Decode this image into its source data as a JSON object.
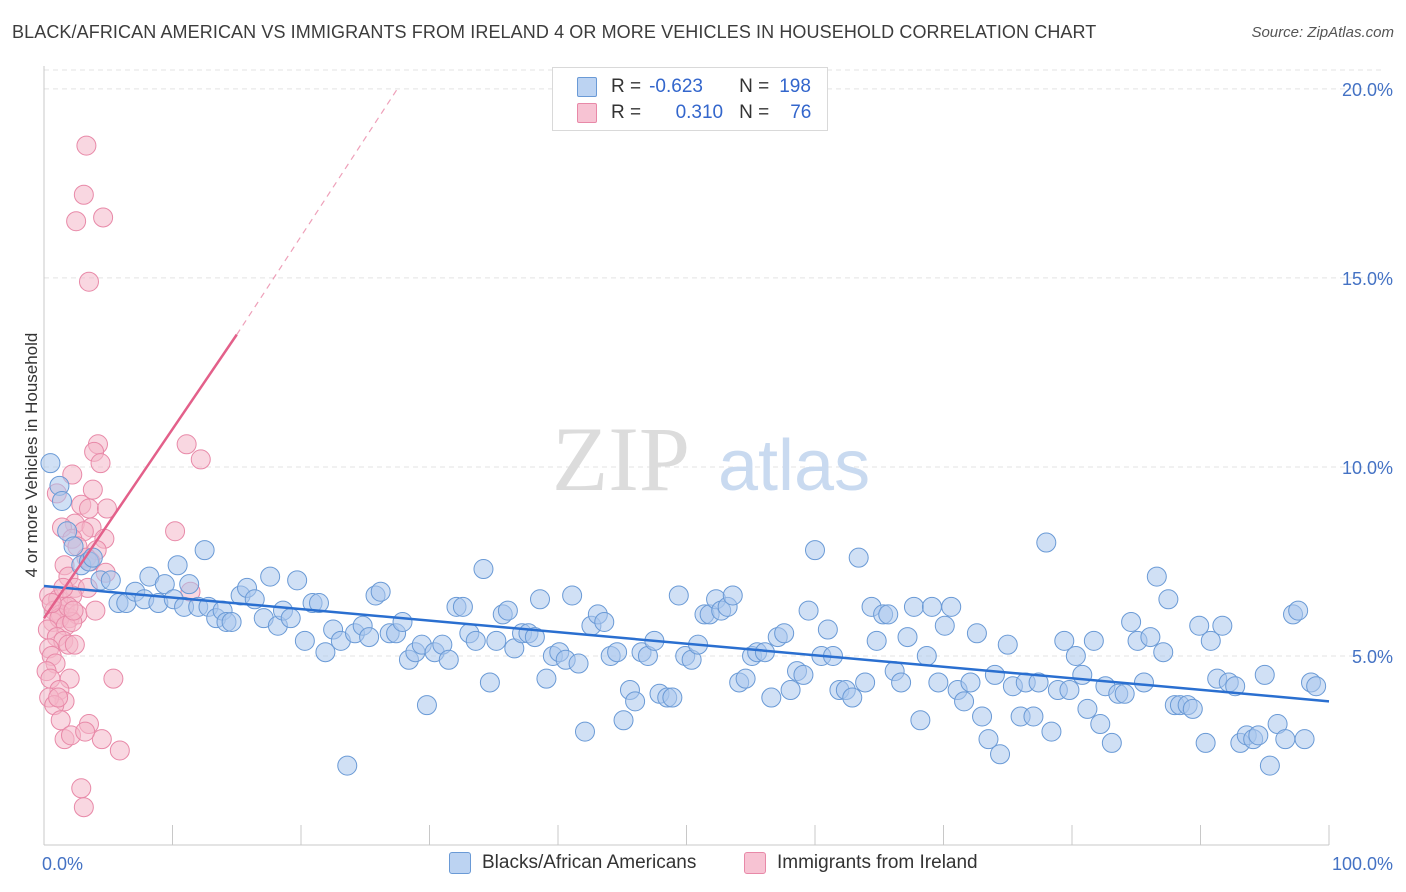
{
  "header": {
    "title": "BLACK/AFRICAN AMERICAN VS IMMIGRANTS FROM IRELAND 4 OR MORE VEHICLES IN HOUSEHOLD CORRELATION CHART",
    "source": "Source: ZipAtlas.com"
  },
  "watermark": {
    "zip": "ZIP",
    "atlas": "atlas"
  },
  "legend": {
    "rows": [
      {
        "r_label": "R =",
        "r_value": "-0.623",
        "n_label": "N =",
        "n_value": "198"
      },
      {
        "r_label": "R =",
        "r_value": "0.310",
        "n_label": "N =",
        "n_value": "76"
      }
    ]
  },
  "bottom_legend": {
    "blue_label": "Blacks/African Americans",
    "pink_label": "Immigrants from Ireland"
  },
  "colors": {
    "blue_fill": "#a9c6ec",
    "blue_stroke": "#6a9ad6",
    "blue_line": "#2a6fd0",
    "pink_fill": "#f4b6c8",
    "pink_stroke": "#e889a8",
    "pink_line": "#e3608a",
    "tick_text": "#4472c4",
    "grid": "#e3e3e3"
  },
  "chart_data": {
    "type": "scatter",
    "title": "BLACK/AFRICAN AMERICAN VS IMMIGRANTS FROM IRELAND 4 OR MORE VEHICLES IN HOUSEHOLD CORRELATION CHART",
    "xlabel": "",
    "ylabel": "4 or more Vehicles in Household",
    "xlim": [
      0,
      100
    ],
    "ylim": [
      0,
      20.5
    ],
    "x_tick_labels": [
      "0.0%",
      "100.0%"
    ],
    "y_ticks": [
      5,
      10,
      15,
      20
    ],
    "y_tick_labels": [
      "5.0%",
      "10.0%",
      "15.0%",
      "20.0%"
    ],
    "grid": "horizontal dashed",
    "legend_position": "top-center",
    "series": [
      {
        "name": "Blacks/African Americans",
        "color": "#a9c6ec",
        "trend": {
          "x": [
            0,
            100
          ],
          "y": [
            6.85,
            3.8
          ]
        },
        "points": [
          [
            0.5,
            10.1
          ],
          [
            1.2,
            9.5
          ],
          [
            1.4,
            9.1
          ],
          [
            1.8,
            8.3
          ],
          [
            2.3,
            7.9
          ],
          [
            2.9,
            7.4
          ],
          [
            3.5,
            7.5
          ],
          [
            3.8,
            7.6
          ],
          [
            4.4,
            7.0
          ],
          [
            5.2,
            7.0
          ],
          [
            5.8,
            6.4
          ],
          [
            6.4,
            6.4
          ],
          [
            7.1,
            6.7
          ],
          [
            7.8,
            6.5
          ],
          [
            8.2,
            7.1
          ],
          [
            8.9,
            6.4
          ],
          [
            9.4,
            6.9
          ],
          [
            10.1,
            6.5
          ],
          [
            10.4,
            7.4
          ],
          [
            10.9,
            6.3
          ],
          [
            11.3,
            6.9
          ],
          [
            12.0,
            6.3
          ],
          [
            12.5,
            7.8
          ],
          [
            12.8,
            6.3
          ],
          [
            13.4,
            6.0
          ],
          [
            13.9,
            6.2
          ],
          [
            14.2,
            5.9
          ],
          [
            14.6,
            5.9
          ],
          [
            15.3,
            6.6
          ],
          [
            15.8,
            6.8
          ],
          [
            16.4,
            6.5
          ],
          [
            17.1,
            6.0
          ],
          [
            17.6,
            7.1
          ],
          [
            18.2,
            5.8
          ],
          [
            18.6,
            6.2
          ],
          [
            19.2,
            6.0
          ],
          [
            19.7,
            7.0
          ],
          [
            20.3,
            5.4
          ],
          [
            20.9,
            6.4
          ],
          [
            21.4,
            6.4
          ],
          [
            21.9,
            5.1
          ],
          [
            22.5,
            5.7
          ],
          [
            23.1,
            5.4
          ],
          [
            23.6,
            2.1
          ],
          [
            24.2,
            5.6
          ],
          [
            24.8,
            5.8
          ],
          [
            25.3,
            5.5
          ],
          [
            25.8,
            6.6
          ],
          [
            26.2,
            6.7
          ],
          [
            26.9,
            5.6
          ],
          [
            27.4,
            5.6
          ],
          [
            27.9,
            5.9
          ],
          [
            28.4,
            4.9
          ],
          [
            28.9,
            5.1
          ],
          [
            29.4,
            5.3
          ],
          [
            29.8,
            3.7
          ],
          [
            30.4,
            5.1
          ],
          [
            31.0,
            5.3
          ],
          [
            31.5,
            4.9
          ],
          [
            32.1,
            6.3
          ],
          [
            32.6,
            6.3
          ],
          [
            33.1,
            5.6
          ],
          [
            33.6,
            5.4
          ],
          [
            34.2,
            7.3
          ],
          [
            34.7,
            4.3
          ],
          [
            35.2,
            5.4
          ],
          [
            35.7,
            6.1
          ],
          [
            36.1,
            6.2
          ],
          [
            36.6,
            5.2
          ],
          [
            37.2,
            5.6
          ],
          [
            37.7,
            5.6
          ],
          [
            38.2,
            5.5
          ],
          [
            38.6,
            6.5
          ],
          [
            39.1,
            4.4
          ],
          [
            39.6,
            5.0
          ],
          [
            40.1,
            5.1
          ],
          [
            40.6,
            4.9
          ],
          [
            41.1,
            6.6
          ],
          [
            41.6,
            4.8
          ],
          [
            42.1,
            3.0
          ],
          [
            42.6,
            5.8
          ],
          [
            43.1,
            6.1
          ],
          [
            43.6,
            5.9
          ],
          [
            44.1,
            5.0
          ],
          [
            44.6,
            5.1
          ],
          [
            45.1,
            3.3
          ],
          [
            45.6,
            4.1
          ],
          [
            46.0,
            3.8
          ],
          [
            46.5,
            5.1
          ],
          [
            47.0,
            5.0
          ],
          [
            47.5,
            5.4
          ],
          [
            47.9,
            4.0
          ],
          [
            48.5,
            3.9
          ],
          [
            48.9,
            3.9
          ],
          [
            49.4,
            6.6
          ],
          [
            49.9,
            5.0
          ],
          [
            50.4,
            4.9
          ],
          [
            50.9,
            5.3
          ],
          [
            51.4,
            6.1
          ],
          [
            51.8,
            6.1
          ],
          [
            52.3,
            6.5
          ],
          [
            52.7,
            6.2
          ],
          [
            53.2,
            6.3
          ],
          [
            53.6,
            6.6
          ],
          [
            54.1,
            4.3
          ],
          [
            54.6,
            4.4
          ],
          [
            55.1,
            5.0
          ],
          [
            55.5,
            5.1
          ],
          [
            56.1,
            5.1
          ],
          [
            56.6,
            3.9
          ],
          [
            57.1,
            5.5
          ],
          [
            57.6,
            5.6
          ],
          [
            58.1,
            4.1
          ],
          [
            58.6,
            4.6
          ],
          [
            59.1,
            4.5
          ],
          [
            59.5,
            6.2
          ],
          [
            60.0,
            7.8
          ],
          [
            60.5,
            5.0
          ],
          [
            61.0,
            5.7
          ],
          [
            61.4,
            5.0
          ],
          [
            61.9,
            4.1
          ],
          [
            62.4,
            4.1
          ],
          [
            62.9,
            3.9
          ],
          [
            63.4,
            7.6
          ],
          [
            63.9,
            4.3
          ],
          [
            64.4,
            6.3
          ],
          [
            64.8,
            5.4
          ],
          [
            65.3,
            6.1
          ],
          [
            65.7,
            6.1
          ],
          [
            66.2,
            4.6
          ],
          [
            66.7,
            4.3
          ],
          [
            67.2,
            5.5
          ],
          [
            67.7,
            6.3
          ],
          [
            68.2,
            3.3
          ],
          [
            68.7,
            5.0
          ],
          [
            69.1,
            6.3
          ],
          [
            69.6,
            4.3
          ],
          [
            70.1,
            5.8
          ],
          [
            70.6,
            6.3
          ],
          [
            71.1,
            4.1
          ],
          [
            71.6,
            3.8
          ],
          [
            72.1,
            4.3
          ],
          [
            72.6,
            5.6
          ],
          [
            73.0,
            3.4
          ],
          [
            73.5,
            2.8
          ],
          [
            74.0,
            4.5
          ],
          [
            74.4,
            2.4
          ],
          [
            75.0,
            5.3
          ],
          [
            75.4,
            4.2
          ],
          [
            76.0,
            3.4
          ],
          [
            76.4,
            4.3
          ],
          [
            77.0,
            3.4
          ],
          [
            77.4,
            4.3
          ],
          [
            78.0,
            8.0
          ],
          [
            78.4,
            3.0
          ],
          [
            78.9,
            4.1
          ],
          [
            79.4,
            5.4
          ],
          [
            79.8,
            4.1
          ],
          [
            80.3,
            5.0
          ],
          [
            80.8,
            4.5
          ],
          [
            81.2,
            3.6
          ],
          [
            81.7,
            5.4
          ],
          [
            82.2,
            3.2
          ],
          [
            82.6,
            4.2
          ],
          [
            83.1,
            2.7
          ],
          [
            83.6,
            4.0
          ],
          [
            84.1,
            4.0
          ],
          [
            84.6,
            5.9
          ],
          [
            85.1,
            5.4
          ],
          [
            85.6,
            4.3
          ],
          [
            86.1,
            5.5
          ],
          [
            86.6,
            7.1
          ],
          [
            87.1,
            5.1
          ],
          [
            87.5,
            6.5
          ],
          [
            88.0,
            3.7
          ],
          [
            88.4,
            3.7
          ],
          [
            89.0,
            3.7
          ],
          [
            89.4,
            3.6
          ],
          [
            89.9,
            5.8
          ],
          [
            90.4,
            2.7
          ],
          [
            90.8,
            5.4
          ],
          [
            91.3,
            4.4
          ],
          [
            91.7,
            5.8
          ],
          [
            92.2,
            4.3
          ],
          [
            92.7,
            4.2
          ],
          [
            93.1,
            2.7
          ],
          [
            93.6,
            2.9
          ],
          [
            94.1,
            2.8
          ],
          [
            94.5,
            2.9
          ],
          [
            95.0,
            4.5
          ],
          [
            95.4,
            2.1
          ],
          [
            96.0,
            3.2
          ],
          [
            96.6,
            2.8
          ],
          [
            97.2,
            6.1
          ],
          [
            97.6,
            6.2
          ],
          [
            98.1,
            2.8
          ],
          [
            98.6,
            4.3
          ],
          [
            99.0,
            4.2
          ]
        ]
      },
      {
        "name": "Immigrants from Ireland",
        "color": "#f4b6c8",
        "trend": {
          "x": [
            0,
            15
          ],
          "y": [
            6.0,
            13.5
          ]
        },
        "trend_dashed_to": {
          "x": 27.5,
          "y": 20.0
        },
        "points": [
          [
            3.3,
            18.5
          ],
          [
            3.1,
            17.2
          ],
          [
            2.5,
            16.5
          ],
          [
            4.6,
            16.6
          ],
          [
            3.5,
            14.9
          ],
          [
            4.2,
            10.6
          ],
          [
            3.9,
            10.4
          ],
          [
            11.1,
            10.6
          ],
          [
            4.4,
            10.1
          ],
          [
            10.2,
            8.3
          ],
          [
            12.2,
            10.2
          ],
          [
            2.2,
            9.8
          ],
          [
            3.8,
            9.4
          ],
          [
            1.0,
            9.3
          ],
          [
            2.9,
            9.0
          ],
          [
            3.5,
            8.9
          ],
          [
            4.9,
            8.9
          ],
          [
            2.4,
            8.5
          ],
          [
            3.7,
            8.4
          ],
          [
            4.7,
            8.1
          ],
          [
            1.4,
            8.4
          ],
          [
            3.1,
            8.3
          ],
          [
            2.2,
            8.1
          ],
          [
            2.6,
            7.9
          ],
          [
            4.1,
            7.8
          ],
          [
            3.3,
            7.6
          ],
          [
            3.6,
            7.5
          ],
          [
            4.8,
            7.2
          ],
          [
            1.6,
            7.4
          ],
          [
            1.9,
            7.1
          ],
          [
            2.4,
            6.8
          ],
          [
            3.4,
            6.8
          ],
          [
            11.4,
            6.7
          ],
          [
            0.4,
            6.6
          ],
          [
            1.6,
            6.3
          ],
          [
            1.1,
            6.5
          ],
          [
            2.2,
            6.6
          ],
          [
            0.8,
            6.2
          ],
          [
            1.3,
            6.1
          ],
          [
            2.0,
            6.0
          ],
          [
            2.6,
            6.1
          ],
          [
            0.7,
            5.9
          ],
          [
            1.2,
            6.0
          ],
          [
            1.7,
            5.8
          ],
          [
            0.3,
            5.7
          ],
          [
            2.2,
            5.9
          ],
          [
            4.0,
            6.2
          ],
          [
            1.0,
            5.5
          ],
          [
            1.5,
            5.4
          ],
          [
            1.9,
            5.3
          ],
          [
            0.4,
            5.2
          ],
          [
            2.4,
            5.3
          ],
          [
            0.6,
            5.0
          ],
          [
            0.9,
            4.8
          ],
          [
            0.2,
            4.6
          ],
          [
            0.5,
            4.4
          ],
          [
            2.0,
            4.4
          ],
          [
            5.4,
            4.4
          ],
          [
            1.2,
            4.1
          ],
          [
            1.6,
            3.8
          ],
          [
            0.4,
            3.9
          ],
          [
            0.8,
            3.7
          ],
          [
            1.3,
            3.3
          ],
          [
            3.5,
            3.2
          ],
          [
            1.6,
            2.8
          ],
          [
            2.1,
            2.9
          ],
          [
            4.5,
            2.8
          ],
          [
            5.9,
            2.5
          ],
          [
            2.9,
            1.5
          ],
          [
            3.1,
            1.0
          ],
          [
            1.1,
            3.9
          ],
          [
            3.2,
            3.0
          ],
          [
            1.9,
            6.3
          ],
          [
            0.6,
            6.4
          ],
          [
            2.3,
            6.2
          ],
          [
            1.5,
            6.8
          ]
        ]
      }
    ]
  }
}
